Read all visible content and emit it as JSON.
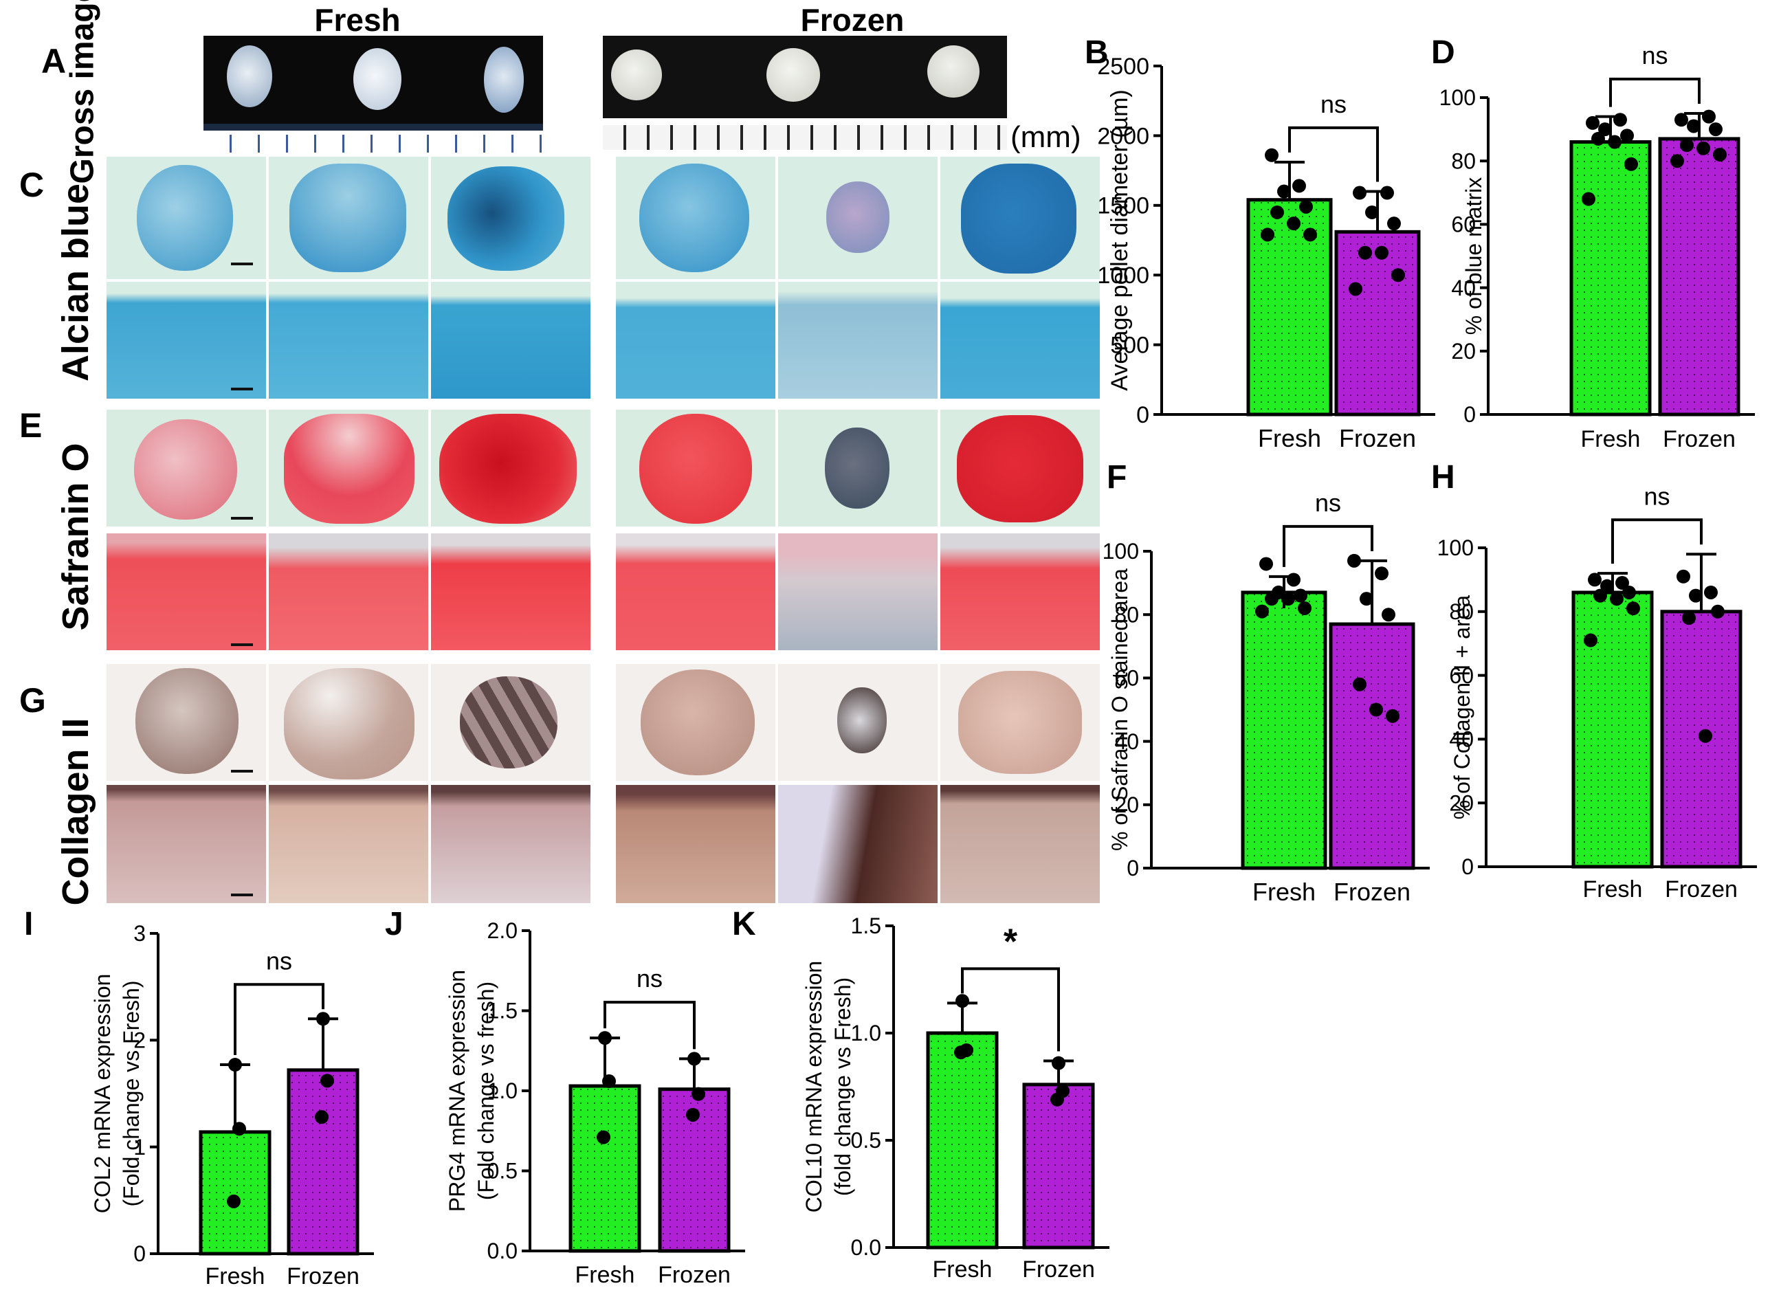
{
  "colors": {
    "fresh": "#22ee22",
    "frozen": "#b021d6",
    "alcian_bg": "#d8ede4",
    "alcian_pellet": "#2d93c8",
    "alcian_detail": "#3fa8d3",
    "safranin_bg": "#d9ece1",
    "safranin_pellet": "#e8323c",
    "safranin_detail": "#ef4048",
    "collagen_bg": "#f0ece8",
    "collagen_pellet": "#b89488",
    "collagen_detail": "#c8a89c"
  },
  "headers": {
    "fresh": "Fresh",
    "frozen": "Frozen",
    "mm": "(mm)"
  },
  "row_labels": {
    "gross": "Gross image",
    "alcian": "Alcian blue",
    "safranin": "Safranin O",
    "collagen": "Collagen II"
  },
  "panel_letters": {
    "A": "A",
    "C": "C",
    "E": "E",
    "G": "G"
  },
  "chart_data": [
    {
      "panel": "B",
      "type": "bar",
      "categories": [
        "Fresh",
        "Frozen"
      ],
      "values": [
        1540,
        1310
      ],
      "errors": [
        [
          1540,
          1810
        ],
        [
          1310,
          1600
        ]
      ],
      "points": [
        [
          1860,
          1640,
          1600,
          1490,
          1450,
          1370,
          1290,
          1290
        ],
        [
          1590,
          1590,
          1450,
          1370,
          1160,
          1160,
          1000,
          900
        ]
      ],
      "ylabel": "Average pellet diameter (µm)",
      "ylim": [
        0,
        2500
      ],
      "yticks": [
        "0",
        "500",
        "1000",
        "1500",
        "2000",
        "2500"
      ],
      "significance": "ns"
    },
    {
      "panel": "D",
      "type": "bar",
      "categories": [
        "Fresh",
        "Frozen"
      ],
      "values": [
        86,
        87
      ],
      "errors": [
        [
          86,
          94
        ],
        [
          87,
          95
        ]
      ],
      "points": [
        [
          92,
          93,
          90,
          88,
          87,
          86,
          79,
          68
        ],
        [
          93,
          94,
          91,
          90,
          85,
          84,
          82,
          80
        ]
      ],
      "ylabel": "% of blue matrix",
      "ylim": [
        0,
        100
      ],
      "yticks": [
        "0",
        "20",
        "40",
        "60",
        "80",
        "100"
      ],
      "significance": "ns"
    },
    {
      "panel": "F",
      "type": "bar",
      "categories": [
        "Fresh",
        "Frozen"
      ],
      "values": [
        87,
        77
      ],
      "errors": [
        [
          82,
          92
        ],
        [
          77,
          97
        ]
      ],
      "points": [
        [
          96,
          91,
          87,
          86,
          85,
          85,
          82,
          81
        ],
        [
          97,
          93,
          85,
          80,
          58,
          50,
          48
        ]
      ],
      "ylabel": "% of Safranin O stained area",
      "ylim": [
        0,
        100
      ],
      "yticks": [
        "0",
        "20",
        "40",
        "60",
        "80",
        "100"
      ],
      "significance": "ns"
    },
    {
      "panel": "H",
      "type": "bar",
      "categories": [
        "Fresh",
        "Frozen"
      ],
      "values": [
        86,
        80
      ],
      "errors": [
        [
          86,
          92
        ],
        [
          80,
          98
        ]
      ],
      "points": [
        [
          90,
          89,
          88,
          86,
          85,
          84,
          81,
          71
        ],
        [
          91,
          86,
          85,
          80,
          78,
          41
        ]
      ],
      "ylabel": "% of Collagen II + area",
      "ylim": [
        0,
        100
      ],
      "yticks": [
        "0",
        "20",
        "40",
        "60",
        "80",
        "100"
      ],
      "significance": "ns"
    },
    {
      "panel": "I",
      "type": "bar",
      "categories": [
        "Fresh",
        "Frozen"
      ],
      "values": [
        1.14,
        1.72
      ],
      "errors": [
        [
          1.14,
          1.77
        ],
        [
          1.72,
          2.2
        ]
      ],
      "points": [
        [
          1.77,
          1.17,
          0.49
        ],
        [
          2.2,
          1.62,
          1.28
        ]
      ],
      "ylabel": "COL2 mRNA expression (Fold change vs Fresh)",
      "ylim": [
        0,
        3
      ],
      "yticks": [
        "0",
        "1",
        "2",
        "3"
      ],
      "significance": "ns"
    },
    {
      "panel": "J",
      "type": "bar",
      "categories": [
        "Fresh",
        "Frozen"
      ],
      "values": [
        1.03,
        1.01
      ],
      "errors": [
        [
          1.03,
          1.33
        ],
        [
          1.01,
          1.2
        ]
      ],
      "points": [
        [
          1.33,
          1.06,
          0.71
        ],
        [
          1.2,
          0.98,
          0.85
        ]
      ],
      "ylabel": "PRG4 mRNA expression (Fold change vs fresh)",
      "ylim": [
        0,
        2
      ],
      "yticks": [
        "0.0",
        "0.5",
        "1.0",
        "1.5",
        "2.0"
      ],
      "significance": "ns"
    },
    {
      "panel": "K",
      "type": "bar",
      "categories": [
        "Fresh",
        "Frozen"
      ],
      "values": [
        1.0,
        0.76
      ],
      "errors": [
        [
          1.0,
          1.14
        ],
        [
          0.76,
          0.87
        ]
      ],
      "points": [
        [
          1.15,
          0.92,
          0.91
        ],
        [
          0.86,
          0.73,
          0.69
        ]
      ],
      "ylabel": "COL10 mRNA expression (fold change vs Fresh)",
      "ylim": [
        0,
        1.5
      ],
      "yticks": [
        "0.0",
        "0.5",
        "1.0",
        "1.5"
      ],
      "significance": "*"
    }
  ]
}
